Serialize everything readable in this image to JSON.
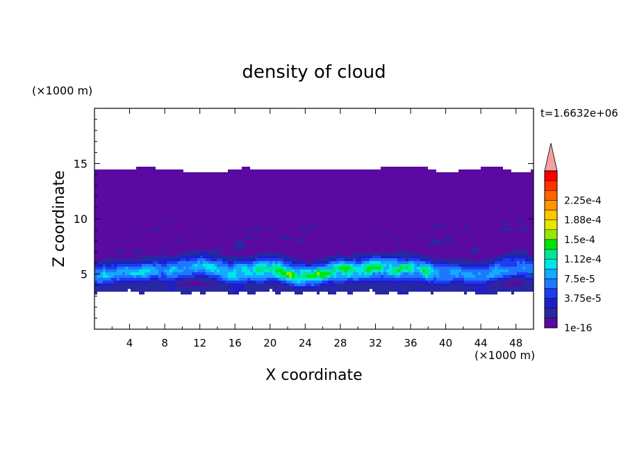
{
  "chart_data": {
    "type": "heatmap",
    "title": "density of cloud",
    "xlabel": "X coordinate",
    "ylabel": "Z coordinate",
    "x_unit": "(×1000 m)",
    "y_unit": "(×1000 m)",
    "time_label": "t=1.6632e+06",
    "xlim": [
      0,
      50
    ],
    "ylim": [
      0,
      20
    ],
    "x_ticks": [
      "4",
      "8",
      "12",
      "16",
      "20",
      "24",
      "28",
      "32",
      "36",
      "40",
      "44",
      "48"
    ],
    "x_tick_values": [
      4,
      8,
      12,
      16,
      20,
      24,
      28,
      32,
      36,
      40,
      44,
      48
    ],
    "y_ticks": [
      "5",
      "10",
      "15"
    ],
    "y_tick_values": [
      5,
      10,
      15
    ],
    "colorbar": {
      "labels": [
        "2.25e-4",
        "1.88e-4",
        "1.5e-4",
        "1.12e-4",
        "7.5e-5",
        "3.75e-5",
        "1e-16"
      ],
      "label_values": [
        0.000225,
        0.000188,
        0.00015,
        0.000112,
        7.5e-05,
        3.75e-05,
        1e-16
      ],
      "levels_bottom_to_top": [
        "#5a0aa0",
        "#2828a0",
        "#1e1ec8",
        "#1e3cf0",
        "#1e78ff",
        "#14aaff",
        "#00e6e6",
        "#00e696",
        "#00e600",
        "#96e600",
        "#e6e600",
        "#ffc800",
        "#ff9600",
        "#ff6400",
        "#ff3200",
        "#ff0000"
      ],
      "extend_color": "#f4a0a0"
    },
    "cloud_layer": {
      "top_z": 14.5,
      "base_z": 3.5,
      "dense_band_z": [
        4.0,
        7.5
      ],
      "peak_value_approx": 0.000135,
      "peak_x": 23
    }
  }
}
